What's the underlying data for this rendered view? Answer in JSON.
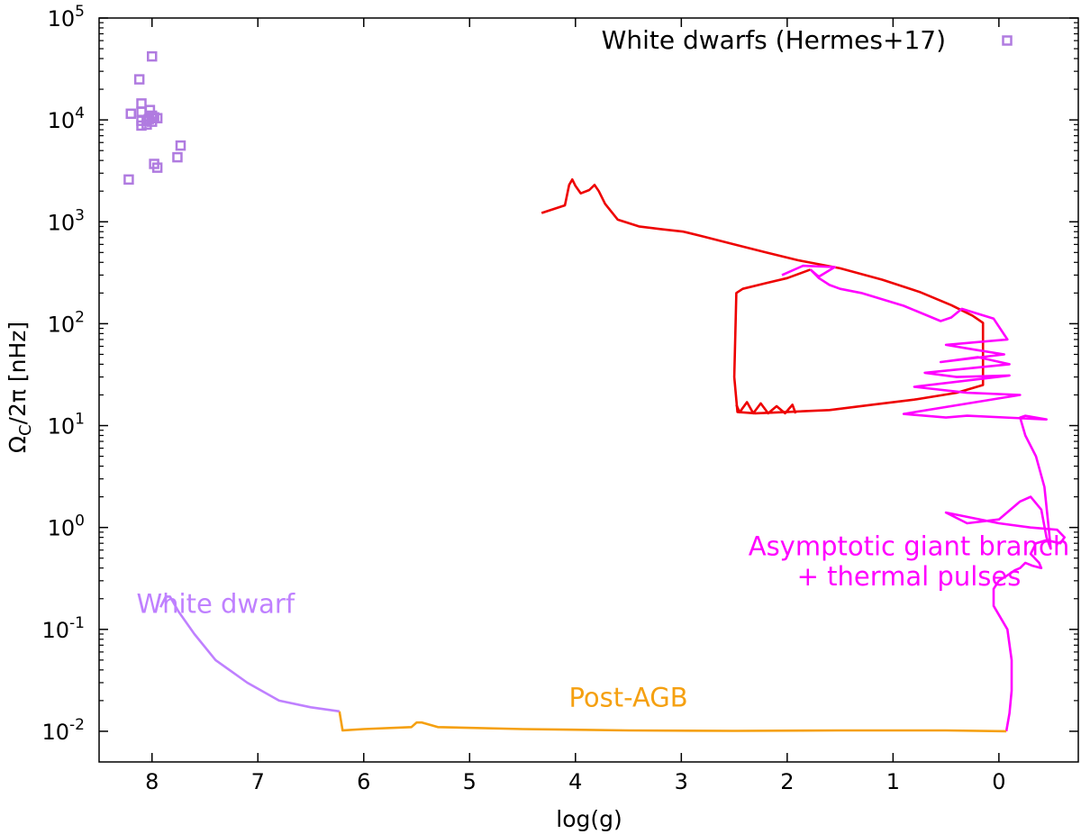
{
  "chart_data": {
    "type": "line",
    "xlabel": "log(g)",
    "ylabel_main": "Ω",
    "ylabel_sub": "C",
    "ylabel_rest": "/2π [nHz]",
    "x_reversed": true,
    "xlim": [
      8.5,
      -0.75
    ],
    "ylim": [
      0.005,
      100000
    ],
    "yscale": "log",
    "x_ticks": [
      8,
      7,
      6,
      5,
      4,
      3,
      2,
      1,
      0
    ],
    "y_ticks": [
      {
        "value": 0.01,
        "base": "10",
        "exp": "-2"
      },
      {
        "value": 0.1,
        "base": "10",
        "exp": "-1"
      },
      {
        "value": 1,
        "base": "10",
        "exp": "0"
      },
      {
        "value": 10,
        "base": "10",
        "exp": "1"
      },
      {
        "value": 100,
        "base": "10",
        "exp": "2"
      },
      {
        "value": 1000,
        "base": "10",
        "exp": "3"
      },
      {
        "value": 10000,
        "base": "10",
        "exp": "4"
      },
      {
        "value": 100000,
        "base": "10",
        "exp": "5"
      }
    ],
    "legend": {
      "label": "White dwarfs (Hermes+17)",
      "position": "top-right"
    },
    "annotations": [
      {
        "text": "White dwarf",
        "color": "#bf80ff",
        "x": 7.4,
        "y": 0.145
      },
      {
        "text": "Post-AGB",
        "color": "#f5a010",
        "x": 3.5,
        "y": 0.0175
      },
      {
        "text": "Asymptotic giant branch",
        "color": "#ff00ff",
        "x": 0.85,
        "y": 0.535
      },
      {
        "text": " + thermal pulses",
        "color": "#ff00ff",
        "x": 0.85,
        "y": 0.27
      }
    ],
    "series": [
      {
        "color": "#ee0000",
        "points": [
          [
            4.32,
            1220
          ],
          [
            4.2,
            1340
          ],
          [
            4.1,
            1450
          ],
          [
            4.06,
            2300
          ],
          [
            4.03,
            2600
          ],
          [
            4.0,
            2250
          ],
          [
            3.95,
            1900
          ],
          [
            3.87,
            2050
          ],
          [
            3.82,
            2300
          ],
          [
            3.78,
            2000
          ],
          [
            3.72,
            1500
          ],
          [
            3.6,
            1050
          ],
          [
            3.4,
            900
          ],
          [
            3.2,
            850
          ],
          [
            2.98,
            800
          ],
          [
            2.8,
            720
          ],
          [
            2.5,
            600
          ],
          [
            2.2,
            500
          ],
          [
            1.9,
            420
          ],
          [
            1.5,
            350
          ],
          [
            1.1,
            270
          ],
          [
            0.75,
            205
          ],
          [
            0.45,
            152
          ],
          [
            0.25,
            120
          ],
          [
            0.15,
            102
          ],
          [
            0.15,
            25
          ],
          [
            0.4,
            21
          ],
          [
            0.8,
            18
          ],
          [
            1.2,
            16
          ],
          [
            1.6,
            14.2
          ],
          [
            2.0,
            13.6
          ],
          [
            2.3,
            13.2
          ],
          [
            2.47,
            13.6
          ],
          [
            2.5,
            30
          ],
          [
            2.48,
            200
          ],
          [
            2.42,
            220
          ],
          [
            2.2,
            250
          ],
          [
            2.0,
            280
          ],
          [
            1.85,
            320
          ],
          [
            1.78,
            340
          ]
        ]
      },
      {
        "color": "#ee0000",
        "points": [
          [
            2.48,
            16
          ],
          [
            2.45,
            13.5
          ],
          [
            2.38,
            17
          ],
          [
            2.32,
            13.2
          ],
          [
            2.25,
            16.5
          ],
          [
            2.18,
            13.2
          ],
          [
            2.1,
            15.5
          ],
          [
            2.02,
            13.2
          ],
          [
            1.95,
            16
          ],
          [
            1.92,
            13.2
          ]
        ]
      },
      {
        "color": "#ff00ff",
        "points": [
          [
            1.78,
            340
          ],
          [
            1.7,
            280
          ],
          [
            1.6,
            240
          ],
          [
            1.5,
            220
          ],
          [
            1.3,
            200
          ],
          [
            0.9,
            150
          ],
          [
            0.55,
            106
          ],
          [
            0.45,
            115
          ],
          [
            0.35,
            140
          ],
          [
            0.05,
            112
          ],
          [
            -0.08,
            70
          ],
          [
            0.5,
            62
          ],
          [
            0.2,
            55
          ],
          [
            -0.05,
            50
          ],
          [
            0.55,
            42
          ],
          [
            0.2,
            47
          ],
          [
            -0.1,
            40
          ],
          [
            0.7,
            33
          ],
          [
            0.4,
            30
          ],
          [
            -0.1,
            31
          ],
          [
            0.8,
            24
          ],
          [
            0.3,
            21
          ],
          [
            -0.2,
            20
          ],
          [
            0.9,
            13
          ],
          [
            0.5,
            12
          ],
          [
            0.3,
            12.5
          ],
          [
            -0.45,
            11.5
          ],
          [
            -0.25,
            12.5
          ],
          [
            -0.2,
            12
          ],
          [
            -0.25,
            8
          ],
          [
            -0.35,
            5
          ],
          [
            -0.43,
            2.5
          ],
          [
            -0.47,
            1
          ],
          [
            -0.49,
            0.62
          ],
          [
            -0.45,
            0.8
          ],
          [
            -0.4,
            1.5
          ],
          [
            -0.3,
            2
          ],
          [
            -0.2,
            1.8
          ],
          [
            0.0,
            1.2
          ],
          [
            0.3,
            1.1
          ],
          [
            0.5,
            1.4
          ],
          [
            0.0,
            1.1
          ],
          [
            -0.3,
            1.0
          ],
          [
            -0.55,
            0.95
          ],
          [
            -0.62,
            0.8
          ],
          [
            -0.58,
            0.7
          ],
          [
            -0.45,
            0.75
          ],
          [
            -0.35,
            0.7
          ],
          [
            -0.3,
            0.55
          ],
          [
            -0.38,
            0.45
          ],
          [
            -0.4,
            0.4
          ],
          [
            -0.32,
            0.42
          ],
          [
            -0.25,
            0.45
          ],
          [
            -0.2,
            0.4
          ],
          [
            -0.15,
            0.38
          ],
          [
            -0.1,
            0.35
          ],
          [
            0.0,
            0.3
          ],
          [
            0.05,
            0.25
          ],
          [
            0.05,
            0.17
          ],
          [
            -0.08,
            0.1
          ],
          [
            -0.12,
            0.05
          ],
          [
            -0.12,
            0.025
          ],
          [
            -0.1,
            0.015
          ],
          [
            -0.07,
            0.01
          ]
        ]
      },
      {
        "color": "#ff00ff",
        "points": [
          [
            1.78,
            340
          ],
          [
            1.72,
            300
          ],
          [
            1.7,
            290
          ],
          [
            1.55,
            360
          ],
          [
            1.85,
            370
          ],
          [
            2.05,
            300
          ]
        ]
      },
      {
        "color": "#f5a010",
        "points": [
          [
            -0.07,
            0.01
          ],
          [
            0.5,
            0.0102
          ],
          [
            1.5,
            0.0102
          ],
          [
            2.5,
            0.0101
          ],
          [
            3.5,
            0.0102
          ],
          [
            4.5,
            0.0105
          ],
          [
            5.3,
            0.011
          ],
          [
            5.45,
            0.0122
          ],
          [
            5.5,
            0.0122
          ],
          [
            5.55,
            0.011
          ],
          [
            6.0,
            0.0105
          ],
          [
            6.2,
            0.0102
          ],
          [
            6.23,
            0.0157
          ]
        ]
      },
      {
        "color": "#bf80ff",
        "points": [
          [
            6.23,
            0.0157
          ],
          [
            6.5,
            0.0172
          ],
          [
            6.8,
            0.02
          ],
          [
            7.1,
            0.03
          ],
          [
            7.4,
            0.05
          ],
          [
            7.6,
            0.09
          ],
          [
            7.75,
            0.15
          ],
          [
            7.83,
            0.21
          ],
          [
            7.87,
            0.21
          ],
          [
            7.92,
            0.165
          ]
        ]
      }
    ],
    "scatter": {
      "color": "#b07be0",
      "points": [
        [
          8.22,
          2600
        ],
        [
          7.95,
          3400
        ],
        [
          7.98,
          3700
        ],
        [
          7.76,
          4300
        ],
        [
          7.73,
          5600
        ],
        [
          8.1,
          8800
        ],
        [
          8.05,
          9000
        ],
        [
          8.1,
          9800
        ],
        [
          8.05,
          9800
        ],
        [
          8.0,
          9600
        ],
        [
          8.03,
          10200
        ],
        [
          7.95,
          10400
        ],
        [
          7.98,
          10600
        ],
        [
          8.0,
          11000
        ],
        [
          8.2,
          11500
        ],
        [
          8.1,
          12000
        ],
        [
          8.02,
          12500
        ],
        [
          8.1,
          14500
        ],
        [
          8.12,
          25000
        ],
        [
          8.0,
          42000
        ]
      ]
    }
  }
}
